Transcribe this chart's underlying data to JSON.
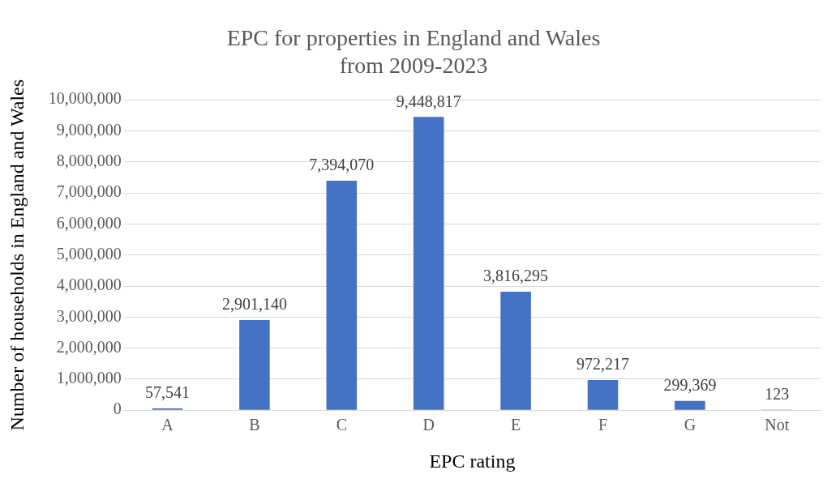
{
  "chart_data": {
    "type": "bar",
    "title": "EPC for properties in England and Wales\nfrom 2009-2023",
    "xlabel": "EPC rating",
    "ylabel": "Number of households in England and Wales",
    "categories": [
      "A",
      "B",
      "C",
      "D",
      "E",
      "F",
      "G",
      "Not"
    ],
    "values": [
      57541,
      2901140,
      7394070,
      9448817,
      3816295,
      972217,
      299369,
      123
    ],
    "color": "#4472c4",
    "ylim": [
      0,
      10000000
    ],
    "yticks": [
      {
        "value": 0,
        "label": "0"
      },
      {
        "value": 1000000,
        "label": "1,000,000"
      },
      {
        "value": 2000000,
        "label": "2,000,000"
      },
      {
        "value": 3000000,
        "label": "3,000,000"
      },
      {
        "value": 4000000,
        "label": "4,000,000"
      },
      {
        "value": 5000000,
        "label": "5,000,000"
      },
      {
        "value": 6000000,
        "label": "6,000,000"
      },
      {
        "value": 7000000,
        "label": "7,000,000"
      },
      {
        "value": 8000000,
        "label": "8,000,000"
      },
      {
        "value": 9000000,
        "label": "9,000,000"
      },
      {
        "value": 10000000,
        "label": "10,000,000"
      }
    ],
    "grid": "y",
    "legend": false,
    "data_labels": true,
    "value_labels": [
      "57,541",
      "2,901,140",
      "7,394,070",
      "9,448,817",
      "3,816,295",
      "972,217",
      "299,369",
      "123"
    ]
  }
}
